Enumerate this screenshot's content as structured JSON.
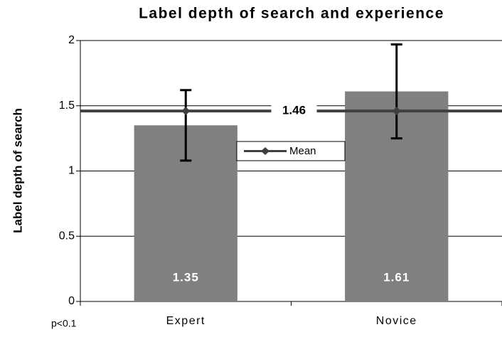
{
  "chart_data": {
    "type": "bar",
    "title": "Label depth of search and experience",
    "ylabel": "Label depth of search",
    "annotation": "p<0.1",
    "categories": [
      "Expert",
      "Novice"
    ],
    "values": [
      1.35,
      1.61
    ],
    "errors": [
      0.27,
      0.36
    ],
    "color": "#808080",
    "mean": {
      "name": "Mean",
      "values": [
        1.46,
        1.46
      ],
      "color": "#404040"
    },
    "ylim": [
      0,
      2
    ],
    "yticks": [
      0,
      0.5,
      1,
      1.5,
      2
    ],
    "grid": true
  }
}
